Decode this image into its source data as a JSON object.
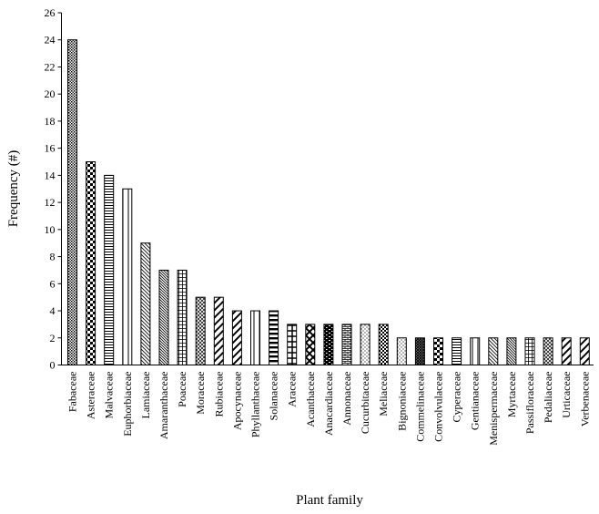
{
  "chart_data": {
    "type": "bar",
    "xlabel": "Plant family",
    "ylabel": "Frequency (#)",
    "ylim": [
      0,
      26
    ],
    "yticks": [
      0,
      2,
      4,
      6,
      8,
      10,
      12,
      14,
      16,
      18,
      20,
      22,
      24,
      26
    ],
    "grid": false,
    "categories": [
      "Fabaceae",
      "Asteraceae",
      "Malvaceae",
      "Euphorbiaceae",
      "Lamiaceae",
      "Amaranthaceae",
      "Poaceae",
      "Moraceae",
      "Rubiaceae",
      "Apocynaceae",
      "Phyllanthaceae",
      "Solanaceae",
      "Araceae",
      "Acanthaceae",
      "Anacardiaceae",
      "Annonaceae",
      "Cucurbitaceae",
      "Meliaceae",
      "Bignoniaceae",
      "Commelinaceae",
      "Convolvulaceae",
      "Cyperaceae",
      "Gentianaceae",
      "Menispermaceae",
      "Myrtaceae",
      "Passifloraceae",
      "Pedaliaceae",
      "Urticaceae",
      "Verbenaceae"
    ],
    "values": [
      24,
      15,
      14,
      13,
      9,
      7,
      7,
      5,
      5,
      4,
      4,
      4,
      3,
      3,
      3,
      3,
      3,
      3,
      2,
      2,
      2,
      2,
      2,
      2,
      2,
      2,
      2,
      2,
      2
    ],
    "patterns": [
      "dots-dense",
      "checker",
      "horizontal-lines",
      "vertical-wide",
      "diagonal-back",
      "diagonal-back-dense",
      "grid",
      "crosshatch",
      "diagonal-fwd-wide",
      "diagonal-fwd-wide",
      "vertical-wide",
      "horizontal-bold",
      "grid-bold",
      "diamond",
      "brick-dark",
      "brick",
      "dots-sparse",
      "checker-fine",
      "dots-sparse",
      "crosshatch-dense",
      "checker",
      "horizontal-lines",
      "vertical-wide",
      "diagonal-back",
      "diagonal-back-dense",
      "grid",
      "crosshatch",
      "diagonal-fwd-wide",
      "diagonal-fwd-wide"
    ]
  }
}
